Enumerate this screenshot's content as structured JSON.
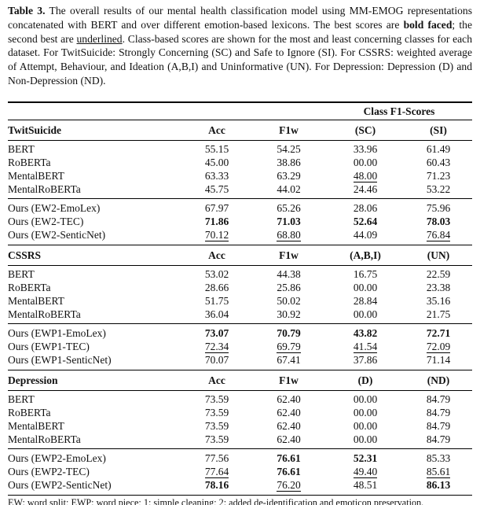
{
  "caption": {
    "label": "Table 3.",
    "seg1": " The overall results of our mental health classification model using MM-EMOG representations concatenated with BERT and over different emotion-based lexicons. The best scores are ",
    "bold_phrase": "bold faced",
    "seg2": "; the second best are ",
    "underlined_phrase": "underlined",
    "seg3": ". Class-based scores are shown for the most and least concerning classes for each dataset. For TwitSuicide: Strongly Concerning (SC) and Safe to Ignore (SI). For CSSRS: weighted average of Attempt, Behaviour, and Ideation (A,B,I) and Uninformative (UN). For Depression: Depression (D) and Non-Depression (ND)."
  },
  "table": {
    "span_header": "Class F1-Scores",
    "sections": [
      {
        "name": "TwitSuicide",
        "columns": [
          "Acc",
          "F1w",
          "(SC)",
          "(SI)"
        ],
        "baseline_rows": [
          {
            "label": "BERT",
            "values": [
              "55.15",
              "54.25",
              "33.96",
              "61.49"
            ],
            "styles": [
              "",
              "",
              "",
              ""
            ]
          },
          {
            "label": "RoBERTa",
            "values": [
              "45.00",
              "38.86",
              "00.00",
              "60.43"
            ],
            "styles": [
              "",
              "",
              "",
              ""
            ]
          },
          {
            "label": "MentalBERT",
            "values": [
              "63.33",
              "63.29",
              "48.00",
              "71.23"
            ],
            "styles": [
              "",
              "",
              "u",
              ""
            ]
          },
          {
            "label": "MentalRoBERTa",
            "values": [
              "45.75",
              "44.02",
              "24.46",
              "53.22"
            ],
            "styles": [
              "",
              "",
              "",
              ""
            ]
          }
        ],
        "ours_rows": [
          {
            "label": "Ours (EW2-EmoLex)",
            "values": [
              "67.97",
              "65.26",
              "28.06",
              "75.96"
            ],
            "styles": [
              "",
              "",
              "",
              ""
            ]
          },
          {
            "label": "Ours (EW2-TEC)",
            "values": [
              "71.86",
              "71.03",
              "52.64",
              "78.03"
            ],
            "styles": [
              "b",
              "b",
              "b",
              "b"
            ]
          },
          {
            "label": "Ours (EW2-SenticNet)",
            "values": [
              "70.12",
              "68.80",
              "44.09",
              "76.84"
            ],
            "styles": [
              "u",
              "u",
              "",
              "u"
            ]
          }
        ]
      },
      {
        "name": "CSSRS",
        "columns": [
          "Acc",
          "F1w",
          "(A,B,I)",
          "(UN)"
        ],
        "baseline_rows": [
          {
            "label": "BERT",
            "values": [
              "53.02",
              "44.38",
              "16.75",
              "22.59"
            ],
            "styles": [
              "",
              "",
              "",
              ""
            ]
          },
          {
            "label": "RoBERTa",
            "values": [
              "28.66",
              "25.86",
              "00.00",
              "23.38"
            ],
            "styles": [
              "",
              "",
              "",
              ""
            ]
          },
          {
            "label": "MentalBERT",
            "values": [
              "51.75",
              "50.02",
              "28.84",
              "35.16"
            ],
            "styles": [
              "",
              "",
              "",
              ""
            ]
          },
          {
            "label": "MentalRoBERTa",
            "values": [
              "36.04",
              "30.92",
              "00.00",
              "21.75"
            ],
            "styles": [
              "",
              "",
              "",
              ""
            ]
          }
        ],
        "ours_rows": [
          {
            "label": "Ours (EWP1-EmoLex)",
            "values": [
              "73.07",
              "70.79",
              "43.82",
              "72.71"
            ],
            "styles": [
              "b",
              "b",
              "b",
              "b"
            ]
          },
          {
            "label": "Ours (EWP1-TEC)",
            "values": [
              "72.34",
              "69.79",
              "41.54",
              "72.09"
            ],
            "styles": [
              "u",
              "u",
              "u",
              "u"
            ]
          },
          {
            "label": "Ours (EWP1-SenticNet)",
            "values": [
              "70.07",
              "67.41",
              "37.86",
              "71.14"
            ],
            "styles": [
              "",
              "",
              "",
              ""
            ]
          }
        ]
      },
      {
        "name": "Depression",
        "columns": [
          "Acc",
          "F1w",
          "(D)",
          "(ND)"
        ],
        "baseline_rows": [
          {
            "label": "BERT",
            "values": [
              "73.59",
              "62.40",
              "00.00",
              "84.79"
            ],
            "styles": [
              "",
              "",
              "",
              ""
            ]
          },
          {
            "label": "RoBERTa",
            "values": [
              "73.59",
              "62.40",
              "00.00",
              "84.79"
            ],
            "styles": [
              "",
              "",
              "",
              ""
            ]
          },
          {
            "label": "MentalBERT",
            "values": [
              "73.59",
              "62.40",
              "00.00",
              "84.79"
            ],
            "styles": [
              "",
              "",
              "",
              ""
            ]
          },
          {
            "label": "MentalRoBERTa",
            "values": [
              "73.59",
              "62.40",
              "00.00",
              "84.79"
            ],
            "styles": [
              "",
              "",
              "",
              ""
            ]
          }
        ],
        "ours_rows": [
          {
            "label": "Ours (EWP2-EmoLex)",
            "values": [
              "77.56",
              "76.61",
              "52.31",
              "85.33"
            ],
            "styles": [
              "",
              "b",
              "b",
              ""
            ]
          },
          {
            "label": "Ours (EWP2-TEC)",
            "values": [
              "77.64",
              "76.61",
              "49.40",
              "85.61"
            ],
            "styles": [
              "u",
              "b",
              "u",
              "u"
            ]
          },
          {
            "label": "Ours (EWP2-SenticNet)",
            "values": [
              "78.16",
              "76.20",
              "48.51",
              "86.13"
            ],
            "styles": [
              "b",
              "u",
              "",
              "b"
            ]
          }
        ]
      }
    ],
    "footnote": "EW: word split; EWP: word piece; 1: simple cleaning; 2: added de-identification and emoticon preservation."
  }
}
